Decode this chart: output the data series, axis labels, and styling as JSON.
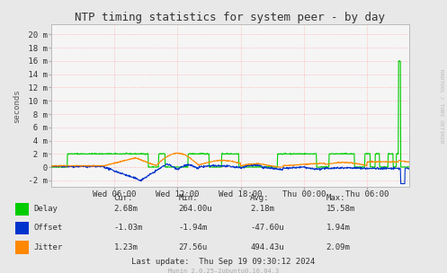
{
  "title": "NTP timing statistics for system peer - by day",
  "ylabel": "seconds",
  "background_color": "#e8e8e8",
  "plot_background": "#f5f5f5",
  "grid_color": "#ffaaaa",
  "ytick_labels": [
    " 20 m",
    " 18 m",
    " 16 m",
    " 14 m",
    " 12 m",
    " 10 m",
    "  8 m",
    "  6 m",
    "  4 m",
    "  2 m",
    "  0",
    " -2 m"
  ],
  "ytick_values": [
    0.02,
    0.018,
    0.016,
    0.014,
    0.012,
    0.01,
    0.008,
    0.006,
    0.004,
    0.002,
    0.0,
    -0.002
  ],
  "ylim": [
    -0.003,
    0.0215
  ],
  "xtick_labels": [
    "Wed 06:00",
    "Wed 12:00",
    "Wed 18:00",
    "Thu 00:00",
    "Thu 06:00"
  ],
  "total_hours": 34.0,
  "xtick_hours": [
    6,
    12,
    18,
    24,
    30
  ],
  "delay_color": "#00cc00",
  "offset_color": "#0033cc",
  "jitter_color": "#ff8800",
  "stats_header": [
    "Cur:",
    "Min:",
    "Avg:",
    "Max:"
  ],
  "stats_delay": [
    "2.68m",
    "264.00u",
    "2.18m",
    "15.58m"
  ],
  "stats_offset": [
    "-1.03m",
    "-1.94m",
    "-47.60u",
    "1.94m"
  ],
  "stats_jitter": [
    "1.23m",
    "27.56u",
    "494.43u",
    "2.09m"
  ],
  "last_update": "Last update:  Thu Sep 19 09:30:12 2024",
  "munin_version": "Munin 2.0.25-2ubuntu0.16.04.3",
  "right_label": "RRDTOOL / TOBI OETIKER",
  "title_fontsize": 9,
  "axis_fontsize": 6.5,
  "legend_fontsize": 6.5,
  "stats_fontsize": 6.5
}
